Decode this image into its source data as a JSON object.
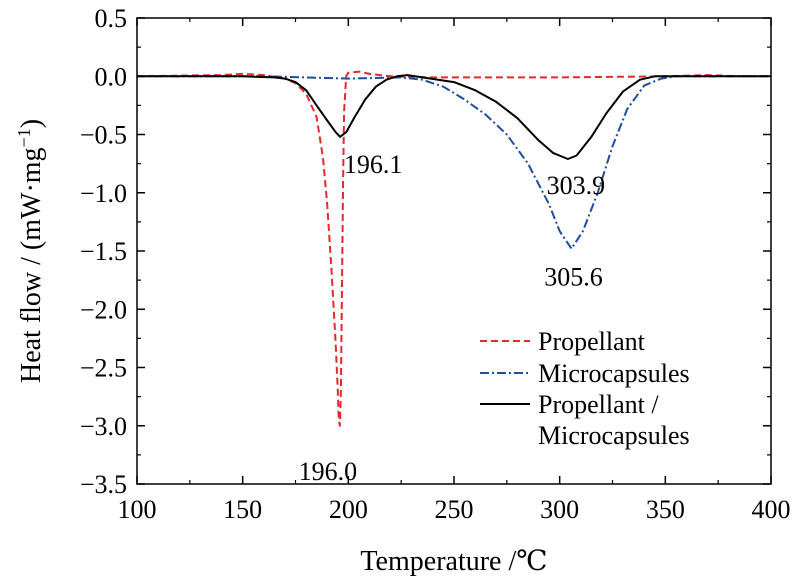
{
  "chart_data": {
    "type": "line",
    "title": "",
    "xlabel": "Temperature /℃",
    "ylabel_text": "Heat flow / (mW·mg",
    "ylabel_sup": "−1",
    "ylabel_tail": ")",
    "xlim": [
      100,
      400
    ],
    "ylim": [
      -3.5,
      0.5
    ],
    "xticks": [
      100,
      150,
      200,
      250,
      300,
      350,
      400
    ],
    "xtick_labels": [
      "100",
      "150",
      "200",
      "250",
      "300",
      "350",
      "400"
    ],
    "yticks": [
      0.5,
      0.0,
      -0.5,
      -1.0,
      -1.5,
      -2.0,
      -2.5,
      -3.0,
      -3.5
    ],
    "ytick_labels": [
      "0.5",
      "0.0",
      "−0.5",
      "−1.0",
      "−1.5",
      "−2.0",
      "−2.5",
      "−3.0",
      "−3.5"
    ],
    "grid": false,
    "legend_position": "bottom-right",
    "series": [
      {
        "name": "Propellant",
        "color": "#e8272d",
        "dash": "dashed",
        "x": [
          100,
          140,
          150,
          160,
          170,
          175,
          180,
          185,
          188,
          190,
          192,
          194,
          195,
          195.5,
          196,
          196.5,
          197,
          197.5,
          198,
          199,
          200,
          205,
          210,
          215,
          220,
          240,
          300,
          350,
          370,
          385,
          400
        ],
        "y": [
          0.0,
          0.01,
          0.02,
          0.01,
          -0.02,
          -0.06,
          -0.15,
          -0.35,
          -0.7,
          -1.1,
          -1.65,
          -2.3,
          -2.7,
          -2.95,
          -3.0,
          -2.7,
          -1.8,
          -0.9,
          -0.3,
          0.0,
          0.03,
          0.04,
          0.02,
          0.01,
          0.0,
          -0.01,
          -0.01,
          0.0,
          0.01,
          0.0,
          0.0
        ]
      },
      {
        "name": "Microcapsules",
        "color": "#1f4e9a",
        "dash": "dashdot",
        "x": [
          100,
          160,
          200,
          225,
          235,
          245,
          255,
          265,
          275,
          285,
          295,
          300,
          305.6,
          311,
          318,
          325,
          332,
          340,
          348,
          355,
          365,
          400
        ],
        "y": [
          0.0,
          0.0,
          -0.02,
          -0.01,
          -0.03,
          -0.09,
          -0.2,
          -0.33,
          -0.5,
          -0.75,
          -1.1,
          -1.33,
          -1.48,
          -1.33,
          -1.0,
          -0.6,
          -0.28,
          -0.08,
          -0.02,
          0.0,
          0.0,
          0.0
        ]
      },
      {
        "name_line1": "Propellant /",
        "name_line2": "Microcapsules",
        "color": "#000000",
        "dash": "solid",
        "x": [
          100,
          150,
          165,
          170,
          175,
          180,
          185,
          190,
          194,
          196.1,
          199,
          203,
          208,
          213,
          218,
          223,
          228,
          235,
          250,
          260,
          270,
          280,
          290,
          297,
          303.9,
          308,
          315,
          322,
          330,
          338,
          345,
          355,
          400
        ],
        "y": [
          0.0,
          0.0,
          -0.01,
          -0.02,
          -0.05,
          -0.12,
          -0.25,
          -0.38,
          -0.48,
          -0.52,
          -0.48,
          -0.35,
          -0.2,
          -0.09,
          -0.03,
          0.0,
          0.01,
          -0.01,
          -0.05,
          -0.12,
          -0.22,
          -0.36,
          -0.55,
          -0.66,
          -0.71,
          -0.68,
          -0.52,
          -0.32,
          -0.13,
          -0.03,
          0.0,
          0.0,
          0.0
        ]
      }
    ],
    "annotations": [
      {
        "text": "196.1",
        "x": 196.1,
        "y": -0.52
      },
      {
        "text": "303.9",
        "x": 303.9,
        "y": -0.71
      },
      {
        "text": "305.6",
        "x": 305.6,
        "y": -1.48
      },
      {
        "text": "196.0",
        "x": 196.0,
        "y": -3.0
      }
    ]
  }
}
